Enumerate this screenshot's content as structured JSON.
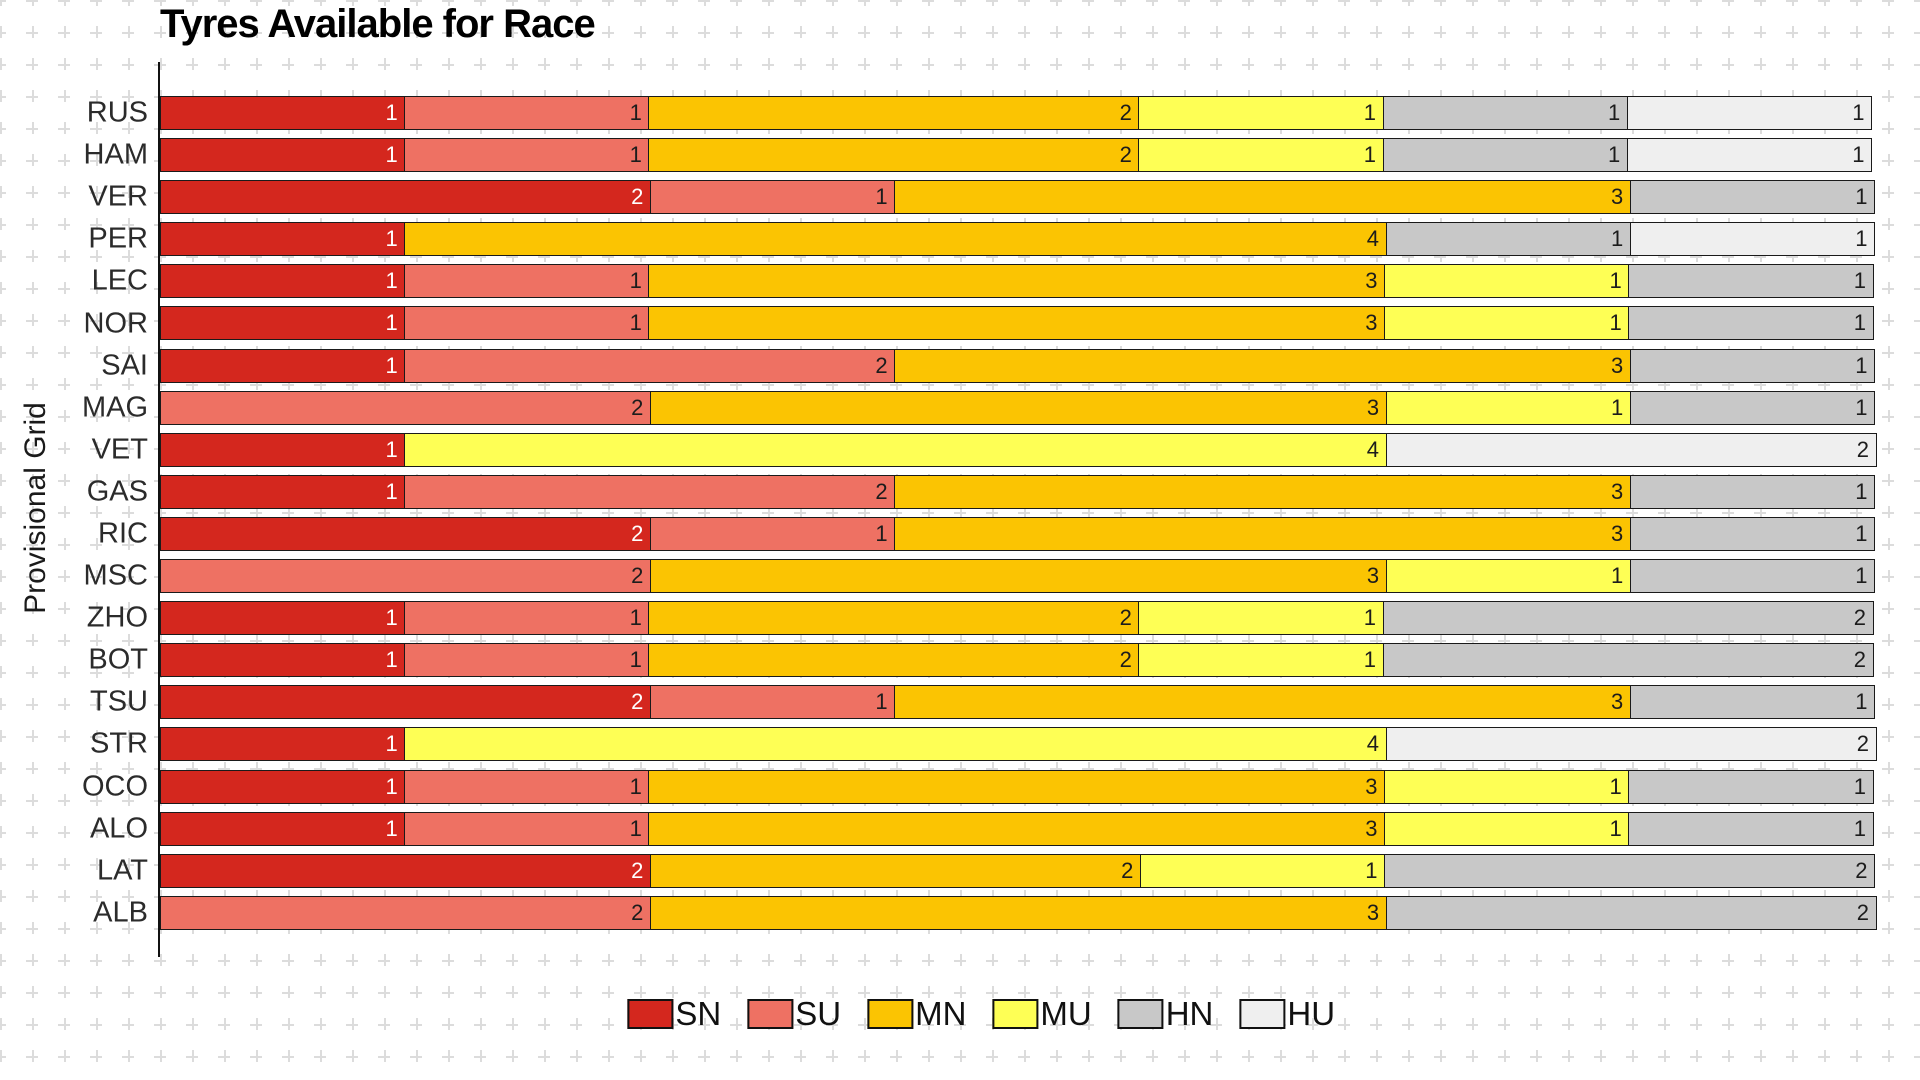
{
  "title": "Tyres Available for Race",
  "y_axis_title": "Provisional Grid",
  "colors": {
    "SN": "#d4271e",
    "SU": "#ee7163",
    "MN": "#fbc402",
    "MU": "#feff55",
    "HN": "#c8c8c8",
    "HU": "#efefef",
    "axis_line": "#111111",
    "segment_border": "#1a1a1a",
    "grid_paper": "#dcdcdc"
  },
  "legend": [
    {
      "label": "SN",
      "color": "#d4271e"
    },
    {
      "label": "SU",
      "color": "#ee7163"
    },
    {
      "label": "MN",
      "color": "#fbc402"
    },
    {
      "label": "MU",
      "color": "#feff55"
    },
    {
      "label": "HN",
      "color": "#c8c8c8"
    },
    {
      "label": "HU",
      "color": "#efefef"
    }
  ],
  "chart_data": {
    "type": "bar",
    "orientation": "horizontal",
    "stacked": true,
    "title": "Tyres Available for Race",
    "xlabel": "",
    "ylabel": "Provisional Grid",
    "xlim": [
      0,
      7
    ],
    "grid": false,
    "legend_position": "bottom-center",
    "categories": [
      "RUS",
      "HAM",
      "VER",
      "PER",
      "LEC",
      "NOR",
      "SAI",
      "MAG",
      "VET",
      "GAS",
      "RIC",
      "MSC",
      "ZHO",
      "BOT",
      "TSU",
      "STR",
      "OCO",
      "ALO",
      "LAT",
      "ALB"
    ],
    "series": [
      {
        "name": "SN",
        "color": "#d4271e",
        "text_color": "#ffffff",
        "values": [
          1,
          1,
          2,
          1,
          1,
          1,
          1,
          0,
          1,
          1,
          2,
          0,
          1,
          1,
          2,
          1,
          1,
          1,
          2,
          0
        ]
      },
      {
        "name": "SU",
        "color": "#ee7163",
        "text_color": "#1c1c1c",
        "values": [
          1,
          1,
          1,
          0,
          1,
          1,
          2,
          2,
          0,
          2,
          1,
          2,
          1,
          1,
          1,
          0,
          1,
          1,
          0,
          2
        ]
      },
      {
        "name": "MN",
        "color": "#fbc402",
        "text_color": "#1c1c1c",
        "values": [
          2,
          2,
          3,
          4,
          3,
          3,
          3,
          3,
          0,
          3,
          3,
          3,
          2,
          2,
          3,
          0,
          3,
          3,
          2,
          3
        ]
      },
      {
        "name": "MU",
        "color": "#feff55",
        "text_color": "#1c1c1c",
        "values": [
          1,
          1,
          0,
          0,
          1,
          1,
          0,
          1,
          4,
          0,
          0,
          1,
          1,
          1,
          0,
          4,
          1,
          1,
          1,
          0
        ]
      },
      {
        "name": "HN",
        "color": "#c8c8c8",
        "text_color": "#1c1c1c",
        "values": [
          1,
          1,
          1,
          1,
          1,
          1,
          1,
          1,
          0,
          1,
          1,
          1,
          2,
          2,
          1,
          0,
          1,
          1,
          2,
          2
        ]
      },
      {
        "name": "HU",
        "color": "#efefef",
        "text_color": "#1c1c1c",
        "values": [
          1,
          1,
          0,
          1,
          0,
          0,
          0,
          0,
          2,
          0,
          0,
          0,
          0,
          0,
          0,
          2,
          0,
          0,
          0,
          0
        ]
      }
    ]
  }
}
